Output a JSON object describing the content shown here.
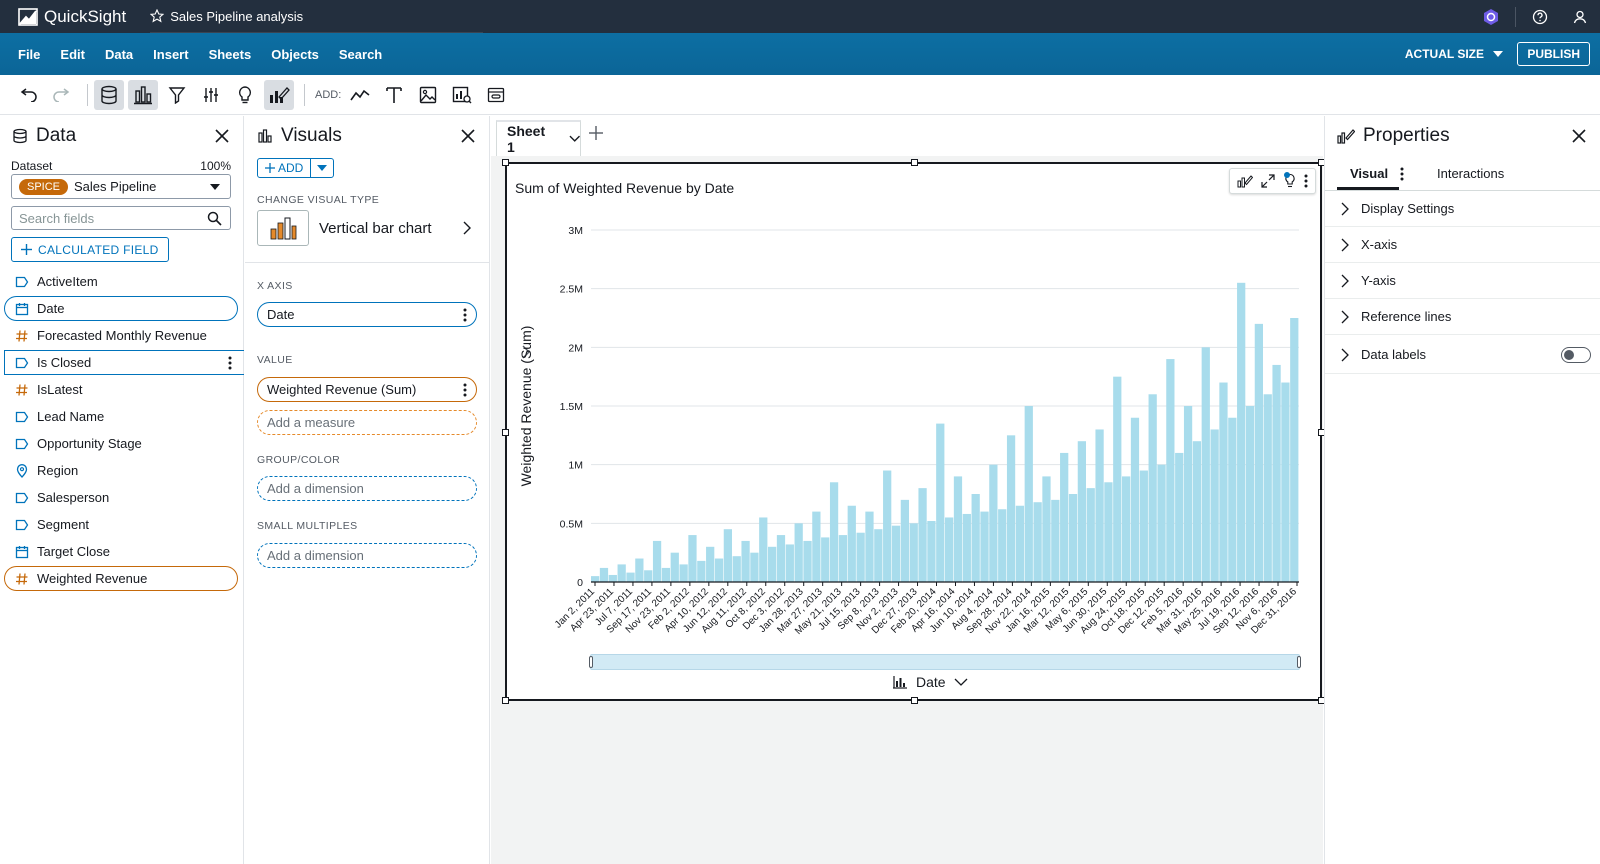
{
  "app": {
    "name": "QuickSight",
    "analysis_title": "Sales Pipeline analysis"
  },
  "menu": [
    "File",
    "Edit",
    "Data",
    "Insert",
    "Sheets",
    "Objects",
    "Search"
  ],
  "menubar": {
    "actual_size": "ACTUAL SIZE",
    "publish": "PUBLISH"
  },
  "toolbar": {
    "add_label": "ADD:"
  },
  "data_panel": {
    "title": "Data",
    "dataset_label": "Dataset",
    "dataset_pct": "100%",
    "spice_badge": "SPICE",
    "dataset_name": "Sales Pipeline",
    "search_placeholder": "Search fields",
    "calc_field": "CALCULATED FIELD",
    "fields": [
      {
        "name": "ActiveItem",
        "type": "dimension"
      },
      {
        "name": "Date",
        "type": "date"
      },
      {
        "name": "Forecasted Monthly Revenue",
        "type": "measure"
      },
      {
        "name": "Is Closed",
        "type": "dimension"
      },
      {
        "name": "IsLatest",
        "type": "measure"
      },
      {
        "name": "Lead Name",
        "type": "dimension"
      },
      {
        "name": "Opportunity Stage",
        "type": "dimension"
      },
      {
        "name": "Region",
        "type": "geo"
      },
      {
        "name": "Salesperson",
        "type": "dimension"
      },
      {
        "name": "Segment",
        "type": "dimension"
      },
      {
        "name": "Target Close",
        "type": "date"
      },
      {
        "name": "Weighted Revenue",
        "type": "measure"
      }
    ]
  },
  "visuals_panel": {
    "title": "Visuals",
    "add": "ADD",
    "change_type_label": "CHANGE VISUAL TYPE",
    "visual_type": "Vertical bar chart",
    "x_axis_label": "X AXIS",
    "x_axis_field": "Date",
    "value_label": "VALUE",
    "value_field": "Weighted Revenue (Sum)",
    "add_measure": "Add a measure",
    "group_label": "GROUP/COLOR",
    "add_dimension_1": "Add a dimension",
    "small_multiples_label": "SMALL MULTIPLES",
    "add_dimension_2": "Add a dimension"
  },
  "sheet": {
    "tab": "Sheet 1"
  },
  "visual": {
    "title": "Sum of Weighted Revenue by Date",
    "x_field": "Date"
  },
  "chart_data": {
    "type": "bar",
    "title": "Sum of Weighted Revenue by Date",
    "xlabel": "",
    "ylabel": "Weighted Revenue (Sum)",
    "ylim": [
      0,
      3000000
    ],
    "y_ticks": [
      "0",
      "0.5M",
      "1M",
      "1.5M",
      "2M",
      "2.5M",
      "3M"
    ],
    "x_ticks": [
      "Jan 2, 2011",
      "Apr 23, 2011",
      "Jul 7, 2011",
      "Sep 17, 2011",
      "Nov 23, 2011",
      "Feb 2, 2012",
      "Apr 10, 2012",
      "Jun 12, 2012",
      "Aug 11, 2012",
      "Oct 8, 2012",
      "Dec 3, 2012",
      "Jan 28, 2013",
      "Mar 27, 2013",
      "May 21, 2013",
      "Jul 15, 2013",
      "Sep 8, 2013",
      "Nov 2, 2013",
      "Dec 27, 2013",
      "Feb 20, 2014",
      "Apr 16, 2014",
      "Jun 10, 2014",
      "Aug 4, 2014",
      "Sep 28, 2014",
      "Nov 22, 2014",
      "Jan 16, 2015",
      "Mar 12, 2015",
      "May 6, 2015",
      "Jun 30, 2015",
      "Aug 24, 2015",
      "Oct 18, 2015",
      "Dec 12, 2015",
      "Feb 5, 2016",
      "Mar 31, 2016",
      "May 25, 2016",
      "Jul 19, 2016",
      "Sep 12, 2016",
      "Nov 6, 2016",
      "Dec 31, 2016"
    ],
    "series": [
      {
        "color": "#a8dcec",
        "values": [
          50000,
          120000,
          60000,
          150000,
          80000,
          200000,
          100000,
          350000,
          120000,
          250000,
          150000,
          400000,
          180000,
          300000,
          200000,
          450000,
          220000,
          350000,
          250000,
          550000,
          300000,
          400000,
          320000,
          500000,
          350000,
          600000,
          380000,
          850000,
          400000,
          650000,
          420000,
          600000,
          450000,
          950000,
          480000,
          700000,
          500000,
          800000,
          520000,
          1350000,
          550000,
          900000,
          580000,
          750000,
          600000,
          1000000,
          620000,
          1250000,
          650000,
          1500000,
          680000,
          900000,
          700000,
          1100000,
          750000,
          1200000,
          800000,
          1300000,
          850000,
          1750000,
          900000,
          1400000,
          950000,
          1600000,
          1000000,
          1900000,
          1100000,
          1500000,
          1200000,
          2000000,
          1300000,
          1700000,
          1400000,
          2550000,
          1500000,
          2200000,
          1600000,
          1850000,
          1700000,
          2250000
        ]
      }
    ],
    "grid": true,
    "legend": "none"
  },
  "properties": {
    "title": "Properties",
    "tabs": [
      "Visual",
      "Interactions"
    ],
    "rows": [
      "Display Settings",
      "X-axis",
      "Y-axis",
      "Reference lines",
      "Data labels"
    ]
  }
}
